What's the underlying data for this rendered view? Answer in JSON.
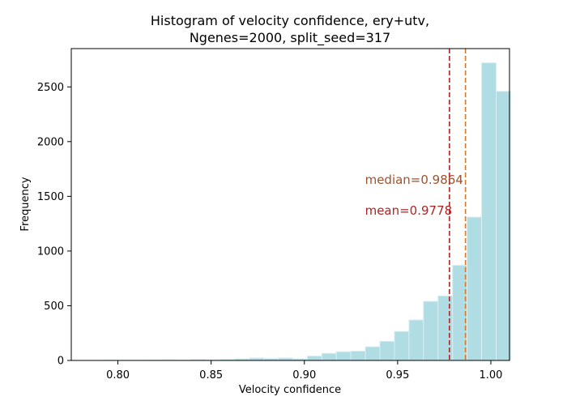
{
  "chart_data": {
    "type": "bar",
    "title_lines": [
      "Histogram of velocity confidence, ery+utv,",
      "Ngenes=2000, split_seed=317"
    ],
    "xlabel": "Velocity confidence",
    "ylabel": "Frequency",
    "xlim": [
      0.775,
      1.01
    ],
    "ylim": [
      0,
      2850
    ],
    "xticks": [
      0.8,
      0.85,
      0.9,
      0.95,
      1.0
    ],
    "xtick_labels": [
      "0.80",
      "0.85",
      "0.90",
      "0.95",
      "1.00"
    ],
    "yticks": [
      0,
      500,
      1000,
      1500,
      2000,
      2500
    ],
    "ytick_labels": [
      "0",
      "500",
      "1000",
      "1500",
      "2000",
      "2500"
    ],
    "bins": {
      "start": 0.7925,
      "width": 0.00779,
      "counts": [
        2,
        1,
        1,
        3,
        5,
        2,
        8,
        5,
        10,
        15,
        22,
        18,
        22,
        15,
        40,
        65,
        80,
        85,
        125,
        175,
        265,
        370,
        540,
        590,
        870,
        1310,
        2720,
        2460
      ]
    },
    "bar_color": "#b0dde4",
    "bar_edge_color": "#d8eef2",
    "reference_lines": [
      {
        "label": "mean=0.9778",
        "value": 0.9778,
        "color": "#b22222"
      },
      {
        "label": "median=0.9864",
        "value": 0.9864,
        "color": "#d2782d"
      }
    ],
    "annotations": [
      {
        "text": "median=0.9864",
        "color": "#a0522d",
        "x": 0.9325,
        "y": 1650
      },
      {
        "text": "mean=0.9778",
        "color": "#b22222",
        "x": 0.9325,
        "y": 1370
      }
    ]
  }
}
